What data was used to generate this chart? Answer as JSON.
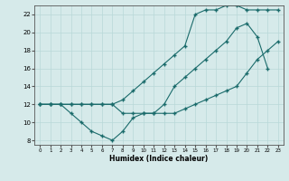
{
  "xlabel": "Humidex (Indice chaleur)",
  "background_color": "#d6eaea",
  "line_color": "#1a6b6b",
  "grid_color": "#b8d8d8",
  "xlim": [
    -0.5,
    23.5
  ],
  "ylim": [
    7.5,
    23
  ],
  "xticks": [
    0,
    1,
    2,
    3,
    4,
    5,
    6,
    7,
    8,
    9,
    10,
    11,
    12,
    13,
    14,
    15,
    16,
    17,
    18,
    19,
    20,
    21,
    22,
    23
  ],
  "yticks": [
    8,
    10,
    12,
    14,
    16,
    18,
    20,
    22
  ],
  "line1_x": [
    0,
    1,
    2,
    3,
    4,
    5,
    6,
    7,
    8,
    9,
    10,
    11,
    12,
    13,
    14,
    15,
    16,
    17,
    18,
    19,
    20,
    21,
    22
  ],
  "line1_y": [
    12,
    12,
    12,
    11,
    10,
    9,
    8.5,
    8,
    9,
    10.5,
    11,
    11,
    12,
    14,
    15,
    16,
    17,
    18,
    19,
    20.5,
    21,
    19.5,
    16
  ],
  "line2_x": [
    0,
    1,
    2,
    3,
    4,
    5,
    6,
    7,
    8,
    9,
    10,
    11,
    12,
    13,
    14,
    15,
    16,
    17,
    18,
    19,
    20,
    21,
    22,
    23
  ],
  "line2_y": [
    12,
    12,
    12,
    12,
    12,
    12,
    12,
    12,
    12.5,
    13.5,
    14.5,
    15.5,
    16.5,
    17.5,
    18.5,
    22,
    22.5,
    22.5,
    23,
    23,
    22.5,
    22.5,
    22.5,
    22.5
  ],
  "line3_x": [
    0,
    1,
    2,
    3,
    4,
    5,
    6,
    7,
    8,
    9,
    10,
    11,
    12,
    13,
    14,
    15,
    16,
    17,
    18,
    19,
    20,
    21,
    22,
    23
  ],
  "line3_y": [
    12,
    12,
    12,
    12,
    12,
    12,
    12,
    12,
    11,
    11,
    11,
    11,
    11,
    11,
    11.5,
    12,
    12.5,
    13,
    13.5,
    14,
    15.5,
    17,
    18,
    19
  ]
}
